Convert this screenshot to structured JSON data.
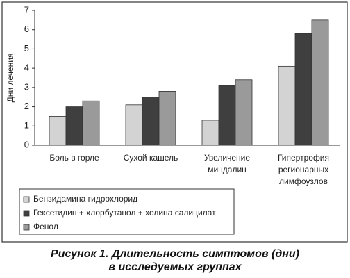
{
  "chart_data": {
    "type": "bar",
    "title": "Рисунок 1. Длительность симптомов (дни)\nв исследуемых группах",
    "y_label": "Дни лечения",
    "categories": [
      "Боль в горле",
      "Сухой кашель",
      "Увеличение\nминдалин",
      "Гипертрофия\nрегионарных\nлимфоузлов"
    ],
    "series": [
      {
        "name": "Бензидамина гидрохлорид",
        "color": "#d3d3d3",
        "values": [
          1.5,
          2.1,
          1.3,
          4.1
        ]
      },
      {
        "name": "Гексетидин + хлорбутанол + холина салицилат",
        "color": "#3f3f3f",
        "values": [
          2.0,
          2.5,
          3.1,
          5.8
        ]
      },
      {
        "name": "Фенол",
        "color": "#9a9a9a",
        "values": [
          2.3,
          2.8,
          3.4,
          6.5
        ]
      }
    ],
    "ylim": [
      0,
      7
    ],
    "yticks": [
      0,
      1,
      2,
      3,
      4,
      5,
      6,
      7
    ],
    "grid": false,
    "legend": "bottom-left"
  }
}
